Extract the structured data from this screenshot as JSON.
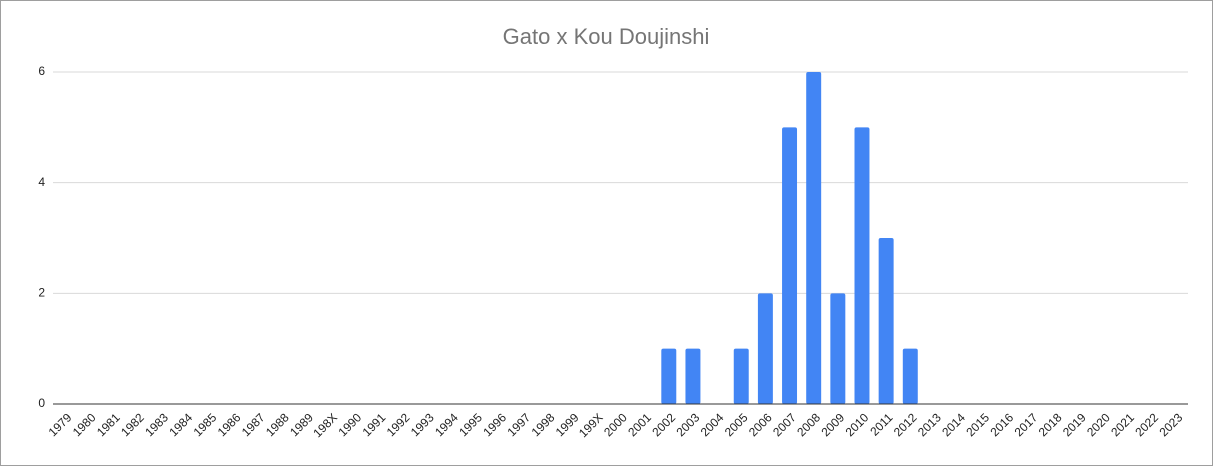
{
  "chart_data": {
    "type": "bar",
    "title": "Gato x Kou Doujinshi",
    "categories": [
      "1979",
      "1980",
      "1981",
      "1982",
      "1983",
      "1984",
      "1985",
      "1986",
      "1987",
      "1988",
      "1989",
      "198X",
      "1990",
      "1991",
      "1992",
      "1993",
      "1994",
      "1995",
      "1996",
      "1997",
      "1998",
      "1999",
      "199X",
      "2000",
      "2001",
      "2002",
      "2003",
      "2004",
      "2005",
      "2006",
      "2007",
      "2008",
      "2009",
      "2010",
      "2011",
      "2012",
      "2013",
      "2014",
      "2015",
      "2016",
      "2017",
      "2018",
      "2019",
      "2020",
      "2021",
      "2022",
      "2023"
    ],
    "values": [
      0,
      0,
      0,
      0,
      0,
      0,
      0,
      0,
      0,
      0,
      0,
      0,
      0,
      0,
      0,
      0,
      0,
      0,
      0,
      0,
      0,
      0,
      0,
      0,
      0,
      1,
      1,
      0,
      1,
      2,
      5,
      6,
      2,
      5,
      3,
      1,
      0,
      0,
      0,
      0,
      0,
      0,
      0,
      0,
      0,
      0,
      0
    ],
    "color": "#4285f4",
    "ylim": [
      0,
      6
    ],
    "yticks": [
      0,
      2,
      4,
      6
    ],
    "grid": true
  }
}
